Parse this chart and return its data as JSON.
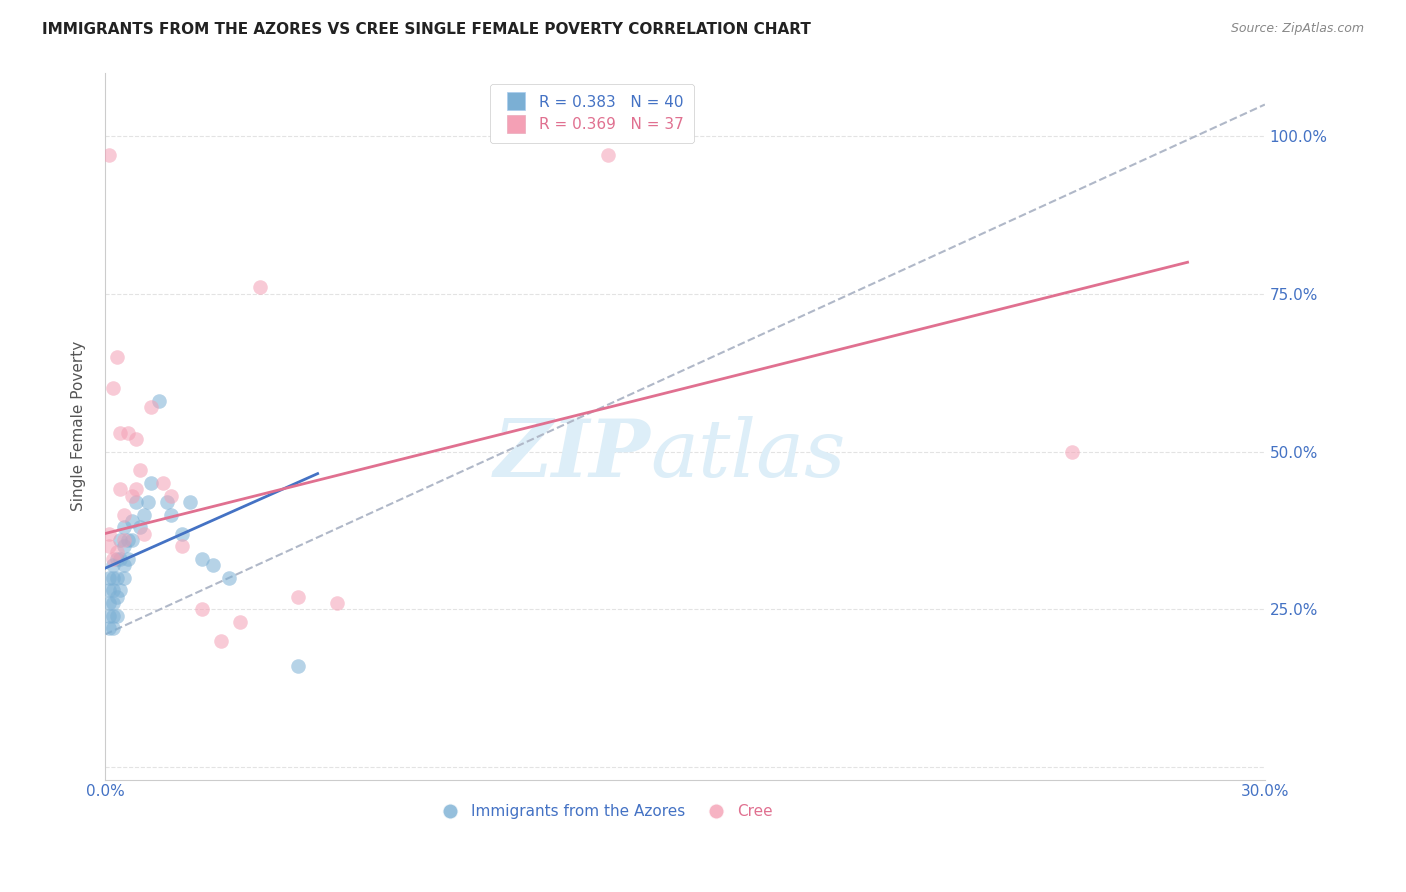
{
  "title": "IMMIGRANTS FROM THE AZORES VS CREE SINGLE FEMALE POVERTY CORRELATION CHART",
  "source_text": "Source: ZipAtlas.com",
  "ylabel": "Single Female Poverty",
  "right_ytick_labels": [
    "100.0%",
    "75.0%",
    "50.0%",
    "25.0%"
  ],
  "right_ytick_values": [
    1.0,
    0.75,
    0.5,
    0.25
  ],
  "xlim": [
    0.0,
    0.3
  ],
  "ylim": [
    -0.02,
    1.1
  ],
  "xtick_positions": [
    0.0,
    0.05,
    0.1,
    0.15,
    0.2,
    0.25,
    0.3
  ],
  "xtick_labels": [
    "0.0%",
    "",
    "",
    "",
    "",
    "",
    "30.0%"
  ],
  "ytick_positions": [
    0.0,
    0.25,
    0.5,
    0.75,
    1.0
  ],
  "blue_scatter_x": [
    0.001,
    0.001,
    0.001,
    0.001,
    0.001,
    0.002,
    0.002,
    0.002,
    0.002,
    0.002,
    0.002,
    0.003,
    0.003,
    0.003,
    0.003,
    0.004,
    0.004,
    0.004,
    0.005,
    0.005,
    0.005,
    0.005,
    0.006,
    0.006,
    0.007,
    0.007,
    0.008,
    0.009,
    0.01,
    0.011,
    0.012,
    0.014,
    0.016,
    0.017,
    0.02,
    0.022,
    0.025,
    0.028,
    0.032,
    0.05
  ],
  "blue_scatter_y": [
    0.22,
    0.24,
    0.26,
    0.28,
    0.3,
    0.22,
    0.24,
    0.26,
    0.28,
    0.3,
    0.32,
    0.24,
    0.27,
    0.3,
    0.33,
    0.28,
    0.33,
    0.36,
    0.3,
    0.32,
    0.35,
    0.38,
    0.33,
    0.36,
    0.36,
    0.39,
    0.42,
    0.38,
    0.4,
    0.42,
    0.45,
    0.58,
    0.42,
    0.4,
    0.37,
    0.42,
    0.33,
    0.32,
    0.3,
    0.16
  ],
  "pink_scatter_x": [
    0.001,
    0.001,
    0.001,
    0.002,
    0.002,
    0.003,
    0.003,
    0.004,
    0.004,
    0.005,
    0.005,
    0.006,
    0.007,
    0.008,
    0.008,
    0.009,
    0.01,
    0.012,
    0.015,
    0.017,
    0.02,
    0.025,
    0.03,
    0.035,
    0.04,
    0.05,
    0.06,
    0.13,
    0.25
  ],
  "pink_scatter_y": [
    0.97,
    0.35,
    0.37,
    0.6,
    0.33,
    0.65,
    0.34,
    0.44,
    0.53,
    0.4,
    0.36,
    0.53,
    0.43,
    0.44,
    0.52,
    0.47,
    0.37,
    0.57,
    0.45,
    0.43,
    0.35,
    0.25,
    0.2,
    0.23,
    0.76,
    0.27,
    0.26,
    0.97,
    0.5
  ],
  "blue_line_x": [
    0.0,
    0.055
  ],
  "blue_line_y": [
    0.315,
    0.465
  ],
  "pink_line_x": [
    0.0,
    0.28
  ],
  "pink_line_y": [
    0.37,
    0.8
  ],
  "dashed_line_x": [
    0.0,
    0.3
  ],
  "dashed_line_y": [
    0.21,
    1.05
  ],
  "blue_color": "#7bafd4",
  "pink_color": "#f4a0b5",
  "blue_line_color": "#4472c4",
  "pink_line_color": "#e07090",
  "dashed_line_color": "#b0b8c8",
  "grid_color": "#e0e0e0",
  "title_color": "#222222",
  "axis_label_color": "#555555",
  "right_axis_color": "#4472c4",
  "background_color": "#ffffff",
  "watermark_zip": "ZIP",
  "watermark_atlas": "atlas",
  "watermark_color": "#ddeef8",
  "title_fontsize": 11,
  "source_fontsize": 9,
  "legend_fontsize": 11
}
